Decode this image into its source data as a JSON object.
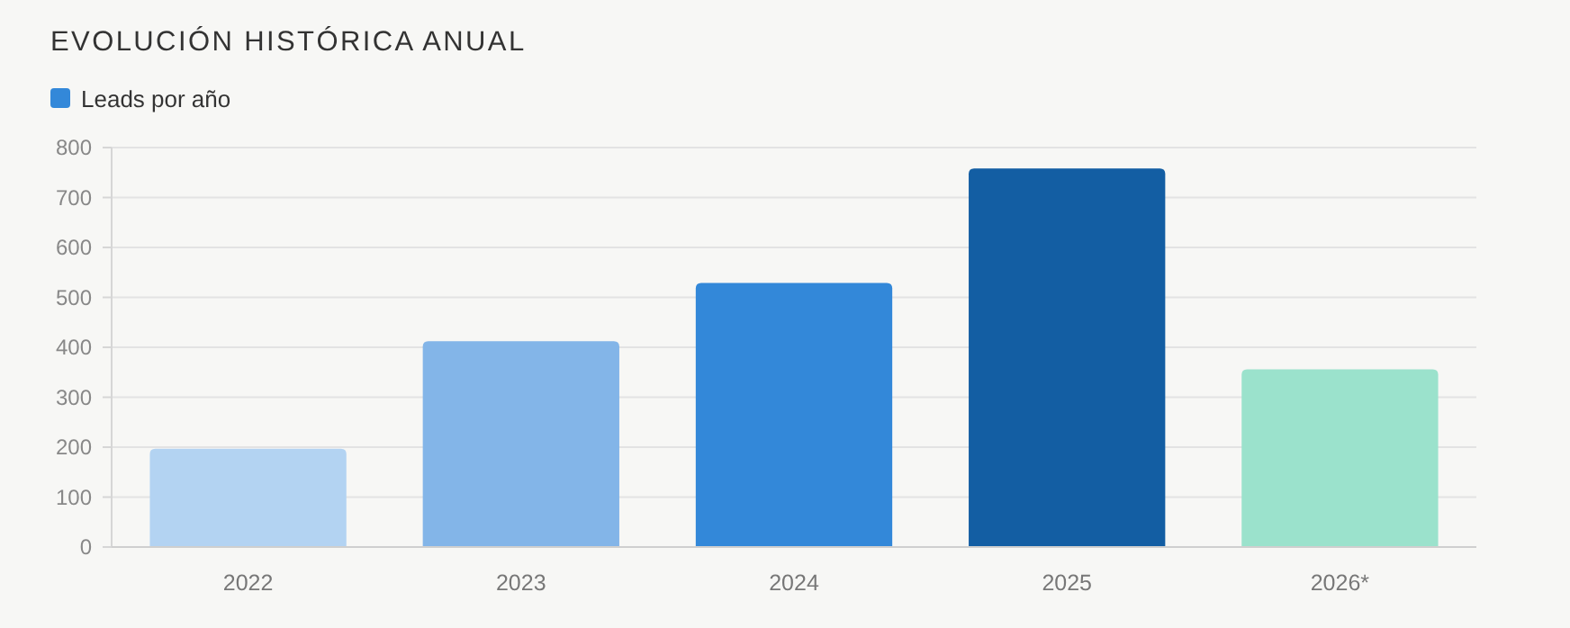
{
  "chart_data": {
    "type": "bar",
    "title": "EVOLUCIÓN HISTÓRICA ANUAL",
    "categories": [
      "2022",
      "2023",
      "2024",
      "2025",
      "2026*"
    ],
    "series": [
      {
        "name": "Leads por año",
        "color": "#3388d9",
        "colors": [
          "#b3d3f2",
          "#83b5e8",
          "#3388d9",
          "#135ea3",
          "#9be2cc"
        ],
        "values": [
          197,
          412,
          529,
          758,
          356
        ]
      }
    ],
    "ylim": [
      0,
      800
    ],
    "yticks": [
      0,
      100,
      200,
      300,
      400,
      500,
      600,
      700,
      800
    ],
    "grid": "y",
    "legend": "top left"
  }
}
